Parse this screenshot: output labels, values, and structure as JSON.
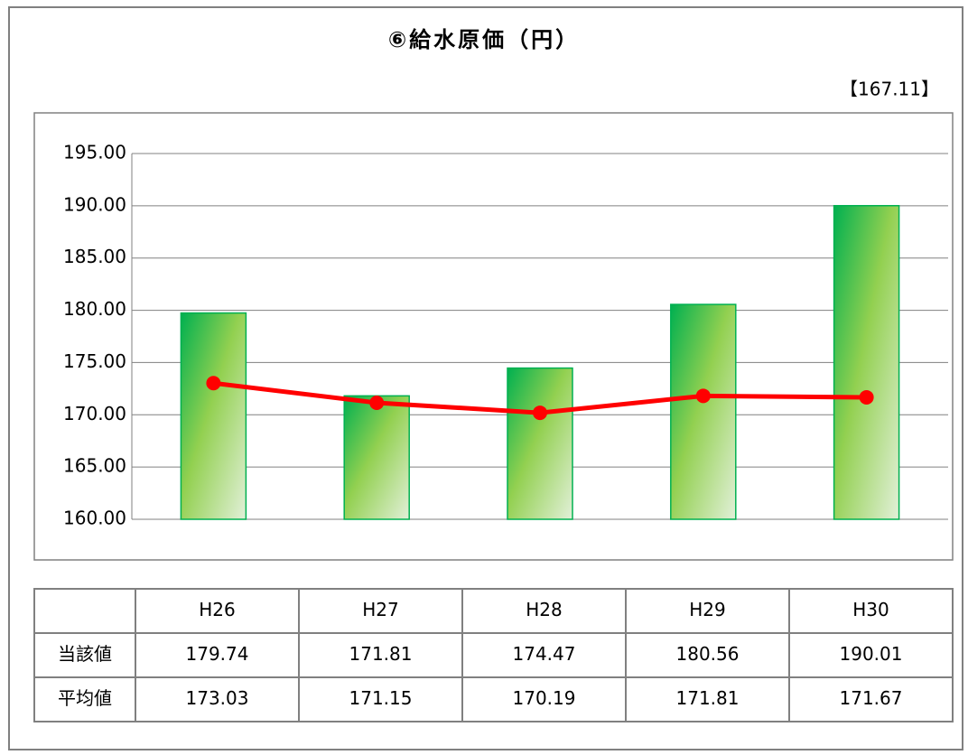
{
  "chart_data": {
    "type": "bar_line",
    "title": "⑥給水原価（円）",
    "annotation": "【167.11】",
    "categories": [
      "H26",
      "H27",
      "H28",
      "H29",
      "H30"
    ],
    "series": [
      {
        "name": "当該値",
        "type": "bar",
        "color": "#00b050",
        "values": [
          179.74,
          171.81,
          174.47,
          180.56,
          190.01
        ]
      },
      {
        "name": "平均値",
        "type": "line",
        "color": "#ff0000",
        "values": [
          173.03,
          171.15,
          170.19,
          171.81,
          171.67
        ]
      }
    ],
    "ylim": [
      160,
      195
    ],
    "yticks": [
      {
        "value": 160,
        "label": "160.00"
      },
      {
        "value": 165,
        "label": "165.00"
      },
      {
        "value": 170,
        "label": "170.00"
      },
      {
        "value": 175,
        "label": "175.00"
      },
      {
        "value": 180,
        "label": "180.00"
      },
      {
        "value": 185,
        "label": "185.00"
      },
      {
        "value": 190,
        "label": "190.00"
      },
      {
        "value": 195,
        "label": "195.00"
      }
    ],
    "grid": true
  }
}
